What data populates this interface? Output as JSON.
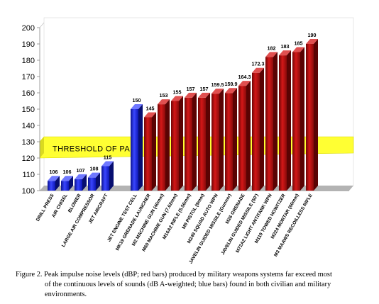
{
  "chart_data": {
    "type": "bar",
    "categories": [
      "DRILL PRESS",
      "AIR CHISEL",
      "BLOWER",
      "LARGE AIR COMPRESSOR",
      "JET AIRCRAFT",
      "JET ENGINE TEST CELL",
      "MK19 GRENADE LAUNCHER",
      "M2 MACHINE GUN (40mm)",
      "M60 MACHINE GUN (7.62mm)",
      "M16A2 RIFLE (5.56mm)",
      "M9 PISTOL (9mm)",
      "M249 SQUAD AUTO WPN",
      "JAVELIN GUIDED MISSILE (Gunner)",
      "M26 GRENADE",
      "JAVELIN GUIDED MISSILE (50')",
      "M72A2 LIGHT ANTITANK WPN",
      "M119 TOWED HOWITZER",
      "M224 MORTAR (60mm)",
      "M3 MAAWS RECOILLESS RIFLE"
    ],
    "values": [
      106,
      106,
      107,
      108,
      115,
      150,
      145,
      153,
      155,
      157,
      157,
      159.5,
      159.9,
      164.3,
      172.3,
      182,
      183,
      185,
      190
    ],
    "value_labels": [
      "106",
      "106",
      "107",
      "108",
      "115",
      "150",
      "145",
      "153",
      "155",
      "157",
      "157",
      "159.5",
      "159.9",
      "164.3",
      "172.3",
      "182",
      "183",
      "185",
      "190"
    ],
    "bar_colors": [
      "blue",
      "blue",
      "blue",
      "blue",
      "blue",
      "blue",
      "red",
      "red",
      "red",
      "red",
      "red",
      "red",
      "red",
      "red",
      "red",
      "red",
      "red",
      "red",
      "red"
    ],
    "gap_after_index": 4,
    "ylim": [
      100,
      200
    ],
    "yticks": [
      100,
      110,
      120,
      130,
      140,
      150,
      160,
      170,
      180,
      190,
      200
    ],
    "threshold_band": {
      "label": "THRESHOLD OF PAIN",
      "from": 120,
      "to": 130
    },
    "grid": false,
    "colors": {
      "blue": "#1a25e0",
      "red": "#b80f0f",
      "band": "#ffff33",
      "floor": "#b3b3b3",
      "wall": "#ffffff"
    }
  },
  "caption": {
    "line1": "Figure 2.  Peak impulse noise levels (dBP; red bars) produced by military weapons systems far exceed most",
    "line2": "of the continuous levels of sounds (dB A-weighted; blue bars) found in both civilian and military",
    "line3": "environments."
  }
}
